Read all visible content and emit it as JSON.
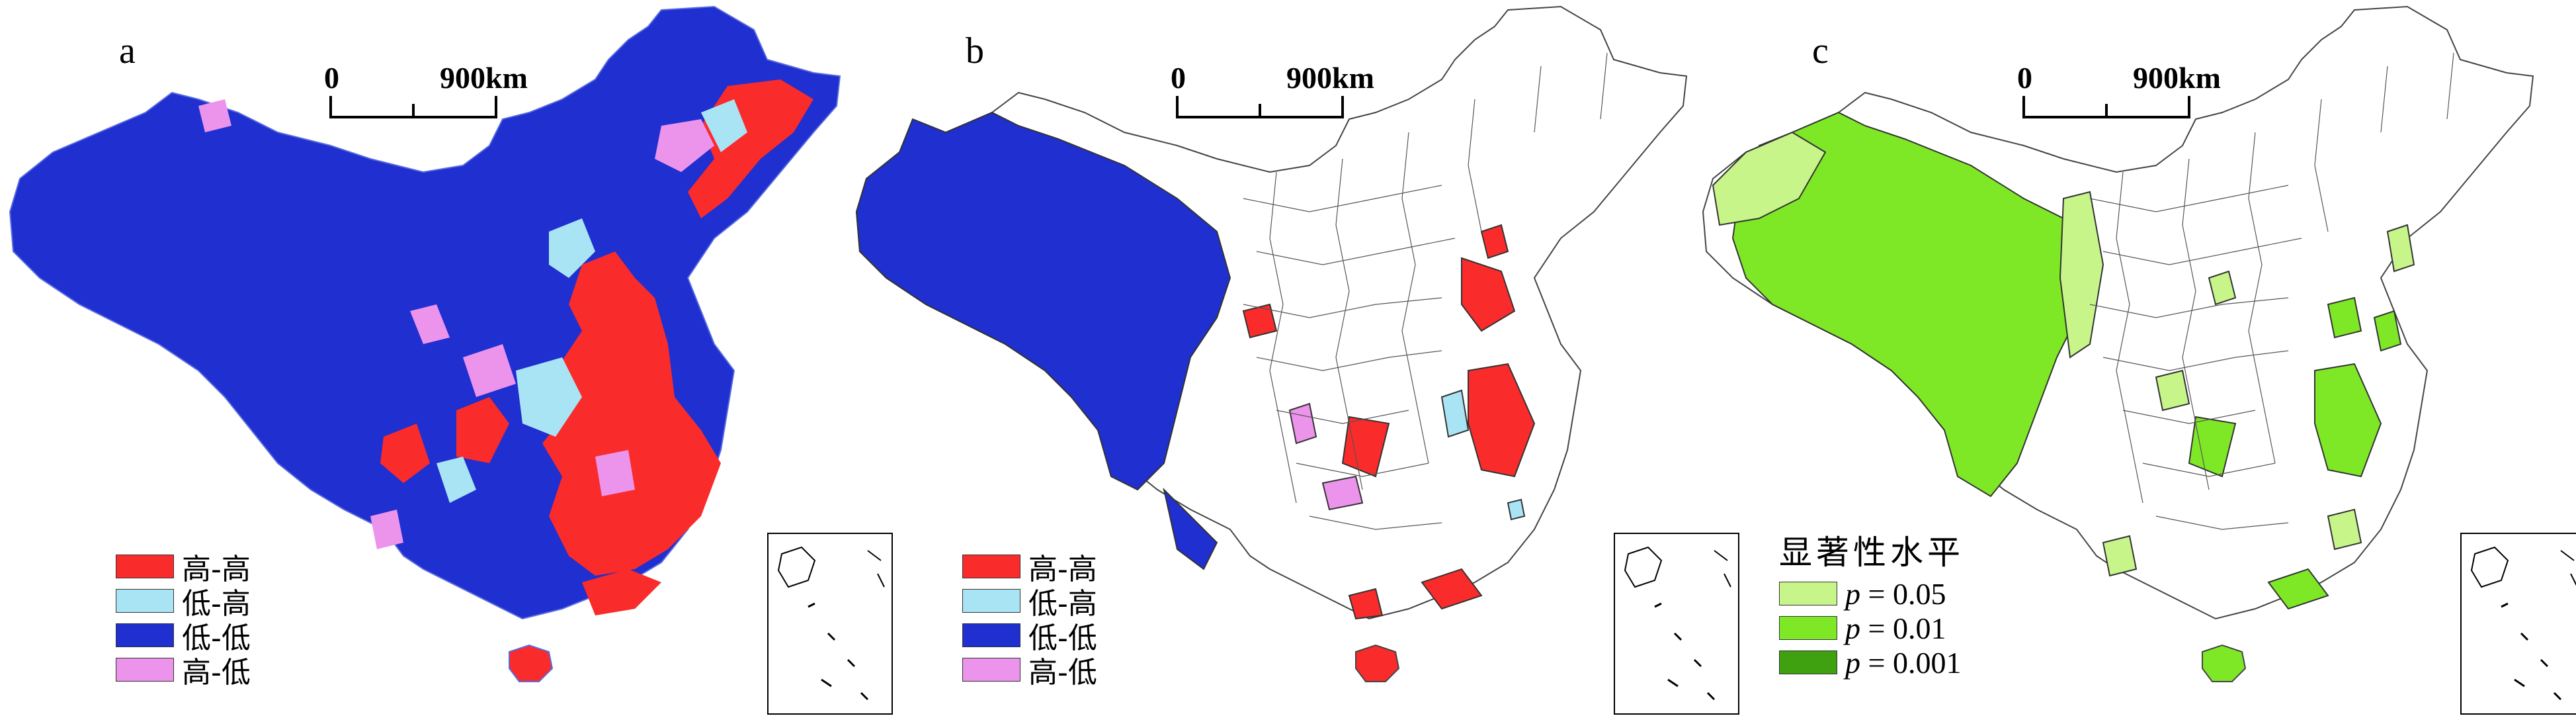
{
  "panels": [
    {
      "label": "a",
      "scale": {
        "zero": "0",
        "distance": "900km"
      },
      "base_color": "#1f2fd0",
      "legend": {
        "title": "",
        "items": [
          {
            "label": "高-高",
            "color": "#fa2b2b"
          },
          {
            "label": "低-高",
            "color": "#a9e4f5"
          },
          {
            "label": "低-低",
            "color": "#1f2fd0"
          },
          {
            "label": "高-低",
            "color": "#ec93ec"
          }
        ]
      }
    },
    {
      "label": "b",
      "scale": {
        "zero": "0",
        "distance": "900km"
      },
      "base_color": "#ffffff",
      "legend": {
        "title": "",
        "items": [
          {
            "label": "高-高",
            "color": "#fa2b2b"
          },
          {
            "label": "低-高",
            "color": "#a9e4f5"
          },
          {
            "label": "低-低",
            "color": "#1f2fd0"
          },
          {
            "label": "高-低",
            "color": "#ec93ec"
          }
        ]
      }
    },
    {
      "label": "c",
      "scale": {
        "zero": "0",
        "distance": "900km"
      },
      "base_color": "#ffffff",
      "legend": {
        "title": "显著性水平",
        "items": [
          {
            "prefix": "p",
            "label": " = 0.05",
            "color": "#c7f58a"
          },
          {
            "prefix": "p",
            "label": " = 0.01",
            "color": "#7ee826"
          },
          {
            "prefix": "p",
            "label": " = 0.001",
            "color": "#3fa010"
          }
        ]
      }
    }
  ]
}
